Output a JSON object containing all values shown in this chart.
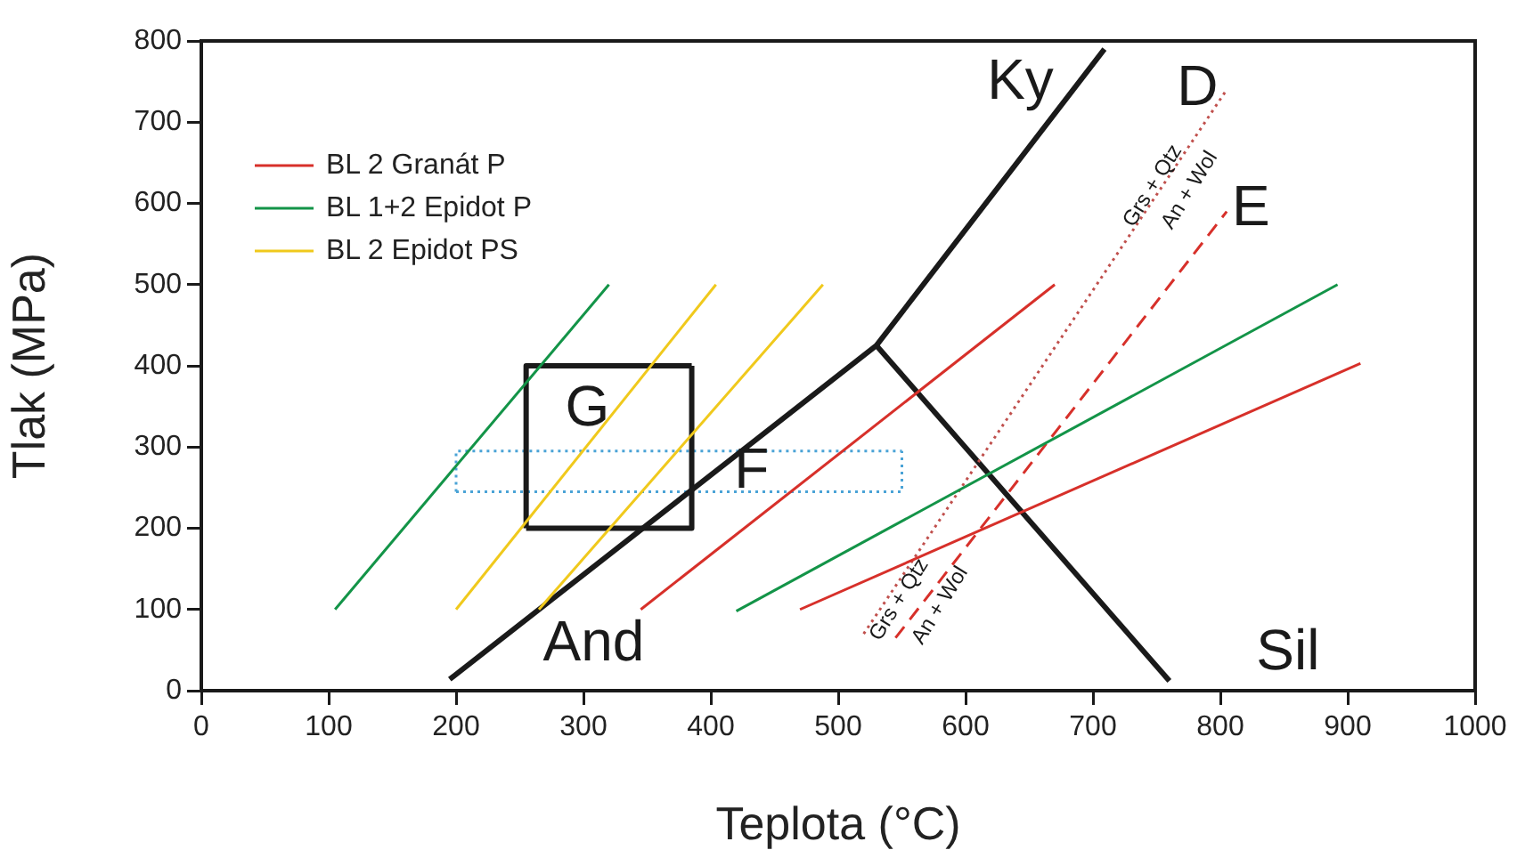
{
  "chart_data": {
    "type": "line",
    "xlabel": "Teplota (°C)",
    "ylabel": "Tlak (MPa)",
    "xlim": [
      0,
      1000
    ],
    "ylim": [
      0,
      800
    ],
    "xticks": [
      0,
      100,
      200,
      300,
      400,
      500,
      600,
      700,
      800,
      900,
      1000
    ],
    "yticks": [
      0,
      100,
      200,
      300,
      400,
      500,
      600,
      700,
      800
    ],
    "grid": false,
    "legend": "top left",
    "series": [
      {
        "name": "BL 2 Granát P",
        "color": "#d7302a",
        "x": [
          345,
          670
        ],
        "values": [
          100,
          500
        ]
      },
      {
        "name": "BL 1+2 Epidot P",
        "color": "#139448",
        "x": [
          105,
          320
        ],
        "values": [
          100,
          500
        ]
      },
      {
        "name": "BL 2 Epidot PS",
        "color": "#f0c91c",
        "x": [
          200,
          404
        ],
        "values": [
          100,
          500
        ]
      },
      {
        "color": "#f0c91c",
        "x": [
          265,
          488
        ],
        "values": [
          100,
          500
        ]
      },
      {
        "color": "#d7302a",
        "x": [
          470,
          910
        ],
        "values": [
          100,
          403
        ]
      },
      {
        "color": "#139448",
        "x": [
          420,
          892
        ],
        "values": [
          98,
          500
        ]
      },
      {
        "color": "#d7302a",
        "x": [
          545,
          805
        ],
        "values": [
          65,
          590
        ],
        "line_style": "dashed"
      },
      {
        "color": "#c0504d",
        "x": [
          520,
          805
        ],
        "values": [
          70,
          740
        ],
        "line_style": "dotted"
      },
      {
        "color": "#1a1a1a",
        "x": [
          195,
          530,
          709
        ],
        "values": [
          14,
          425,
          790
        ]
      },
      {
        "color": "#1a1a1a",
        "x": [
          530,
          760
        ],
        "values": [
          425,
          12
        ]
      },
      {
        "color": "#1a1a1a",
        "x": [
          255,
          385,
          385
        ],
        "values": [
          200,
          200,
          400
        ]
      },
      {
        "color": "#1a1a1a",
        "x": [
          255,
          255,
          385
        ],
        "values": [
          200,
          400,
          400
        ]
      },
      {
        "color": "#4aa3d6",
        "x": [
          200,
          550,
          550
        ],
        "values": [
          245,
          245,
          295
        ],
        "line_style": "dotted"
      },
      {
        "color": "#4aa3d6",
        "x": [
          200,
          200,
          550
        ],
        "values": [
          245,
          295,
          295
        ],
        "line_style": "dotted"
      }
    ],
    "annotations": [
      "Ky",
      "D",
      "E",
      "G",
      "F",
      "And",
      "Sil",
      "Grs + Qtz",
      "An + Wol",
      "Grs + Qtz",
      "An + Wol"
    ]
  }
}
